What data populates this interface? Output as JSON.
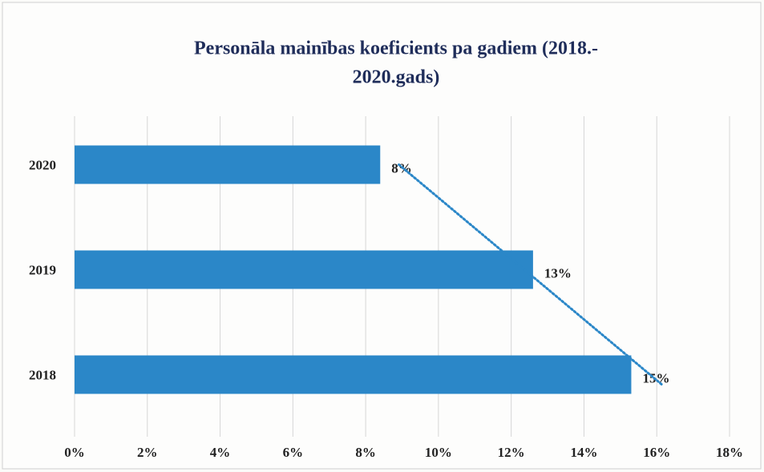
{
  "chart_data": {
    "type": "hbar",
    "title": [
      "Personāla mainības koeficients pa gadiem (2018.-",
      "2020.gads)"
    ],
    "categories": [
      "2020",
      "2019",
      "2018"
    ],
    "values": [
      8.4,
      12.6,
      15.3
    ],
    "value_labels": [
      "8%",
      "13%",
      "15%"
    ],
    "color": "#2b87c8",
    "trendline": true,
    "trendline_color": "#2b87c8",
    "xlim": [
      0,
      18
    ],
    "xticks": [
      {
        "value": 0,
        "label": "0%"
      },
      {
        "value": 2,
        "label": "2%"
      },
      {
        "value": 4,
        "label": "4%"
      },
      {
        "value": 6,
        "label": "6%"
      },
      {
        "value": 8,
        "label": "8%"
      },
      {
        "value": 10,
        "label": "10%"
      },
      {
        "value": 12,
        "label": "12%"
      },
      {
        "value": 14,
        "label": "14%"
      },
      {
        "value": 16,
        "label": "16%"
      },
      {
        "value": 18,
        "label": "18%"
      }
    ],
    "grid": true
  }
}
